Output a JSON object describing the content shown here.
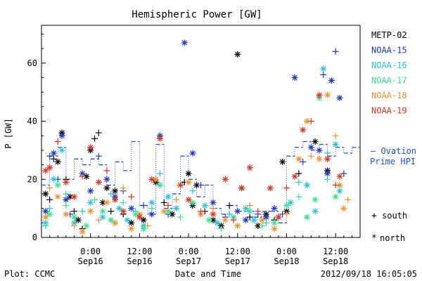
{
  "chart_data": {
    "type": "scatter",
    "title": "Hemispheric Power [GW]",
    "xlabel": "Date and Time",
    "ylabel": "P [GW]",
    "ylim": [
      0,
      73
    ],
    "yticks": [
      0,
      20,
      40,
      60
    ],
    "x_unit": "hours since 2012/09/15 12:00",
    "xlim": [
      0,
      78
    ],
    "x_ticks": [
      {
        "x": 12,
        "time": "0:00",
        "day": "Sep16"
      },
      {
        "x": 24,
        "time": "12:00",
        "day": "Sep16"
      },
      {
        "x": 36,
        "time": "0:00",
        "day": "Sep17"
      },
      {
        "x": 48,
        "time": "12:00",
        "day": "Sep17"
      },
      {
        "x": 60,
        "time": "0:00",
        "day": "Sep18"
      },
      {
        "x": 72,
        "time": "12:00",
        "day": "Sep18"
      }
    ],
    "footer_left": "Plot: CCMC",
    "footer_right": "2012/09/18 16:05:05",
    "ovation_label": [
      "— Ovation",
      "Prime HPI"
    ],
    "ovation_color": "#1f4fd8",
    "marker_legend": [
      {
        "symbol": "+",
        "label": "south"
      },
      {
        "symbol": "*",
        "label": "north"
      }
    ],
    "series": [
      {
        "name": "METP-02",
        "color": "#000000",
        "points": [
          [
            1,
            15,
            "*"
          ],
          [
            2,
            13,
            "+"
          ],
          [
            3,
            27,
            "+"
          ],
          [
            4,
            26,
            "*"
          ],
          [
            5,
            36,
            "*"
          ],
          [
            6,
            20,
            "+"
          ],
          [
            7,
            14,
            "*"
          ],
          [
            8,
            9,
            "+"
          ],
          [
            9,
            6,
            "*"
          ],
          [
            10,
            3,
            "+"
          ],
          [
            11,
            21,
            "*"
          ],
          [
            12,
            30,
            "*"
          ],
          [
            13,
            34,
            "+"
          ],
          [
            14,
            36,
            "+"
          ],
          [
            15,
            12,
            "*"
          ],
          [
            16,
            17,
            "*"
          ],
          [
            17,
            9,
            "+"
          ],
          [
            18,
            16,
            "*"
          ],
          [
            20,
            8,
            "+"
          ],
          [
            22,
            5,
            "*"
          ],
          [
            25,
            6,
            "*"
          ],
          [
            28,
            19,
            "*"
          ],
          [
            30,
            12,
            "+"
          ],
          [
            32,
            8,
            "*"
          ],
          [
            35,
            19,
            "+"
          ],
          [
            36,
            22,
            "*"
          ],
          [
            37,
            11,
            "*"
          ],
          [
            38,
            18,
            "*"
          ],
          [
            40,
            9,
            "+"
          ],
          [
            42,
            6,
            "*"
          ],
          [
            44,
            4,
            "*"
          ],
          [
            46,
            11,
            "+"
          ],
          [
            48,
            63,
            "*"
          ],
          [
            49,
            17,
            "*"
          ],
          [
            51,
            7,
            "+"
          ],
          [
            53,
            4,
            "*"
          ],
          [
            55,
            8,
            "*"
          ],
          [
            57,
            6,
            "+"
          ],
          [
            59,
            26,
            "*"
          ],
          [
            60,
            9,
            "*"
          ],
          [
            63,
            22,
            "+"
          ],
          [
            67,
            33,
            "*"
          ],
          [
            70,
            23,
            "*"
          ]
        ]
      },
      {
        "name": "NOAA-15",
        "color": "#1a35cc",
        "points": [
          [
            1,
            9,
            "*"
          ],
          [
            2,
            28,
            "+"
          ],
          [
            3,
            29,
            "*"
          ],
          [
            4,
            20,
            "+"
          ],
          [
            5,
            35,
            "*"
          ],
          [
            6,
            13,
            "*"
          ],
          [
            7,
            8,
            "+"
          ],
          [
            10,
            22,
            "*"
          ],
          [
            12,
            16,
            "*"
          ],
          [
            14,
            28,
            "+"
          ],
          [
            16,
            20,
            "*"
          ],
          [
            18,
            14,
            "*"
          ],
          [
            20,
            16,
            "+"
          ],
          [
            22,
            10,
            "*"
          ],
          [
            25,
            11,
            "+"
          ],
          [
            27,
            8,
            "*"
          ],
          [
            29,
            35,
            "*"
          ],
          [
            31,
            8,
            "+"
          ],
          [
            35,
            67,
            "*"
          ],
          [
            37,
            29,
            "*"
          ],
          [
            39,
            18,
            "+"
          ],
          [
            42,
            12,
            "*"
          ],
          [
            45,
            7,
            "+"
          ],
          [
            48,
            9,
            "*"
          ],
          [
            50,
            6,
            "*"
          ],
          [
            53,
            8,
            "+"
          ],
          [
            55,
            7,
            "*"
          ],
          [
            57,
            10,
            "*"
          ],
          [
            59,
            8,
            "+"
          ],
          [
            62,
            55,
            "*"
          ],
          [
            64,
            26,
            "+"
          ],
          [
            66,
            31,
            "*"
          ],
          [
            68,
            30,
            "*"
          ],
          [
            69,
            56,
            "+"
          ],
          [
            70,
            22,
            "*"
          ],
          [
            71,
            54,
            "*"
          ],
          [
            72,
            64,
            "+"
          ],
          [
            73,
            48,
            "*"
          ],
          [
            74,
            22,
            "+"
          ]
        ]
      },
      {
        "name": "NOAA-16",
        "color": "#20c4e0",
        "points": [
          [
            1,
            5,
            "*"
          ],
          [
            2,
            10,
            "+"
          ],
          [
            3,
            20,
            "*"
          ],
          [
            5,
            30,
            "*"
          ],
          [
            6,
            15,
            "+"
          ],
          [
            8,
            5,
            "*"
          ],
          [
            10,
            9,
            "+"
          ],
          [
            12,
            12,
            "*"
          ],
          [
            15,
            7,
            "*"
          ],
          [
            17,
            15,
            "+"
          ],
          [
            19,
            10,
            "*"
          ],
          [
            21,
            6,
            "*"
          ],
          [
            23,
            9,
            "+"
          ],
          [
            25,
            4,
            "*"
          ],
          [
            27,
            12,
            "*"
          ],
          [
            29,
            22,
            "+"
          ],
          [
            31,
            14,
            "*"
          ],
          [
            33,
            10,
            "*"
          ],
          [
            37,
            16,
            "+"
          ],
          [
            40,
            11,
            "*"
          ],
          [
            43,
            5,
            "*"
          ],
          [
            46,
            8,
            "+"
          ],
          [
            50,
            10,
            "*"
          ],
          [
            52,
            6,
            "*"
          ],
          [
            55,
            5,
            "+"
          ],
          [
            58,
            7,
            "*"
          ],
          [
            61,
            12,
            "*"
          ],
          [
            63,
            19,
            "+"
          ],
          [
            65,
            18,
            "*"
          ],
          [
            67,
            9,
            "*"
          ],
          [
            69,
            58,
            "*"
          ],
          [
            70,
            29,
            "+"
          ],
          [
            72,
            32,
            "*"
          ],
          [
            73,
            16,
            "*"
          ]
        ]
      },
      {
        "name": "NOAA-17",
        "color": "#2ee88a",
        "points": [
          [
            1,
            4,
            "+"
          ],
          [
            2,
            8,
            "*"
          ],
          [
            4,
            18,
            "*"
          ],
          [
            6,
            11,
            "+"
          ],
          [
            8,
            7,
            "*"
          ],
          [
            11,
            4,
            "*"
          ],
          [
            13,
            13,
            "+"
          ],
          [
            15,
            9,
            "*"
          ],
          [
            17,
            6,
            "*"
          ],
          [
            20,
            12,
            "+"
          ],
          [
            23,
            8,
            "*"
          ],
          [
            25,
            3,
            "*"
          ],
          [
            27,
            10,
            "+"
          ],
          [
            29,
            18,
            "*"
          ],
          [
            31,
            9,
            "*"
          ],
          [
            34,
            7,
            "+"
          ],
          [
            37,
            12,
            "*"
          ],
          [
            41,
            6,
            "*"
          ],
          [
            44,
            3,
            "+"
          ],
          [
            47,
            7,
            "*"
          ],
          [
            51,
            9,
            "*"
          ],
          [
            54,
            4,
            "+"
          ],
          [
            57,
            5,
            "*"
          ],
          [
            60,
            11,
            "*"
          ],
          [
            63,
            14,
            "+"
          ],
          [
            65,
            7,
            "*"
          ],
          [
            67,
            13,
            "*"
          ],
          [
            68,
            48,
            "*"
          ],
          [
            70,
            20,
            "+"
          ],
          [
            72,
            14,
            "*"
          ]
        ]
      },
      {
        "name": "NOAA-18",
        "color": "#f0922a",
        "points": [
          [
            1,
            7,
            "*"
          ],
          [
            2,
            17,
            "+"
          ],
          [
            4,
            14,
            "*"
          ],
          [
            6,
            8,
            "*"
          ],
          [
            8,
            4,
            "+"
          ],
          [
            10,
            2,
            "*"
          ],
          [
            12,
            9,
            "*"
          ],
          [
            14,
            6,
            "+"
          ],
          [
            16,
            12,
            "*"
          ],
          [
            18,
            5,
            "*"
          ],
          [
            20,
            17,
            "+"
          ],
          [
            22,
            3,
            "*"
          ],
          [
            24,
            8,
            "*"
          ],
          [
            26,
            4,
            "+"
          ],
          [
            28,
            20,
            "*"
          ],
          [
            30,
            9,
            "*"
          ],
          [
            33,
            13,
            "+"
          ],
          [
            36,
            19,
            "*"
          ],
          [
            39,
            8,
            "*"
          ],
          [
            42,
            10,
            "+"
          ],
          [
            45,
            6,
            "*"
          ],
          [
            48,
            4,
            "*"
          ],
          [
            51,
            11,
            "+"
          ],
          [
            54,
            6,
            "*"
          ],
          [
            57,
            3,
            "*"
          ],
          [
            60,
            8,
            "+"
          ],
          [
            63,
            27,
            "*"
          ],
          [
            65,
            40,
            "*"
          ],
          [
            66,
            28,
            "+"
          ],
          [
            68,
            27,
            "*"
          ],
          [
            70,
            49,
            "*"
          ],
          [
            72,
            35,
            "+"
          ],
          [
            73,
            18,
            "*"
          ],
          [
            74,
            10,
            "*"
          ],
          [
            75,
            13,
            "+"
          ]
        ]
      },
      {
        "name": "NOAA-19",
        "color": "#e0301e",
        "points": [
          [
            1,
            23,
            "*"
          ],
          [
            2,
            24,
            "*"
          ],
          [
            4,
            33,
            "+"
          ],
          [
            6,
            19,
            "*"
          ],
          [
            8,
            14,
            "*"
          ],
          [
            10,
            21,
            "+"
          ],
          [
            12,
            31,
            "*"
          ],
          [
            14,
            19,
            "*"
          ],
          [
            16,
            23,
            "+"
          ],
          [
            18,
            13,
            "*"
          ],
          [
            20,
            9,
            "*"
          ],
          [
            22,
            14,
            "+"
          ],
          [
            24,
            7,
            "*"
          ],
          [
            27,
            20,
            "*"
          ],
          [
            29,
            34,
            "*"
          ],
          [
            31,
            11,
            "+"
          ],
          [
            34,
            18,
            "*"
          ],
          [
            36,
            13,
            "*"
          ],
          [
            39,
            9,
            "+"
          ],
          [
            42,
            8,
            "*"
          ],
          [
            45,
            20,
            "*"
          ],
          [
            47,
            6,
            "+"
          ],
          [
            49,
            17,
            "*"
          ],
          [
            51,
            24,
            "*"
          ],
          [
            53,
            9,
            "+"
          ],
          [
            56,
            17,
            "*"
          ],
          [
            58,
            7,
            "*"
          ],
          [
            60,
            17,
            "+"
          ],
          [
            62,
            21,
            "*"
          ],
          [
            64,
            37,
            "*"
          ],
          [
            66,
            40,
            "+"
          ],
          [
            68,
            49,
            "*"
          ],
          [
            70,
            27,
            "*"
          ],
          [
            72,
            18,
            "+"
          ],
          [
            73,
            21,
            "*"
          ]
        ]
      }
    ],
    "ovation_steps": [
      [
        0,
        18
      ],
      [
        2,
        28
      ],
      [
        4,
        31
      ],
      [
        6,
        20
      ],
      [
        8,
        27
      ],
      [
        10,
        25
      ],
      [
        12,
        27
      ],
      [
        14,
        25
      ],
      [
        16,
        18
      ],
      [
        18,
        26
      ],
      [
        20,
        23
      ],
      [
        22,
        33
      ],
      [
        24,
        11
      ],
      [
        26,
        8
      ],
      [
        28,
        32
      ],
      [
        30,
        10
      ],
      [
        32,
        15
      ],
      [
        34,
        28
      ],
      [
        36,
        20
      ],
      [
        38,
        14
      ],
      [
        40,
        18
      ],
      [
        42,
        10
      ],
      [
        44,
        8
      ],
      [
        46,
        11
      ],
      [
        48,
        9
      ],
      [
        50,
        9
      ],
      [
        52,
        7
      ],
      [
        54,
        9
      ],
      [
        56,
        9
      ],
      [
        58,
        5
      ],
      [
        60,
        28
      ],
      [
        62,
        31
      ],
      [
        64,
        33
      ],
      [
        66,
        30
      ],
      [
        68,
        32
      ],
      [
        70,
        28
      ],
      [
        72,
        31
      ],
      [
        74,
        29
      ],
      [
        76,
        31
      ]
    ]
  }
}
